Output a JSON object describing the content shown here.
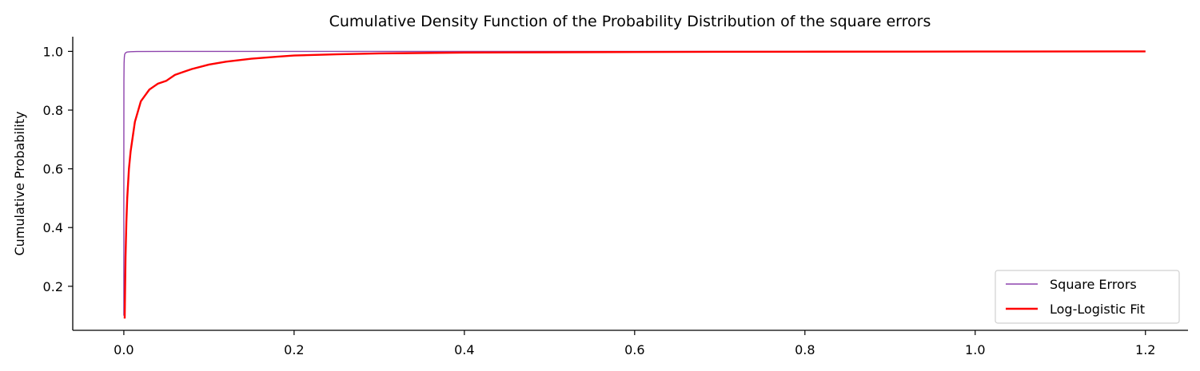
{
  "chart_data": {
    "type": "line",
    "title": "Cumulative Density Function of the Probability Distribution of the square errors",
    "xlabel": "",
    "ylabel": "Cumulative Probability",
    "xlim": [
      -0.06,
      1.25
    ],
    "ylim": [
      0.05,
      1.05
    ],
    "x_ticks": [
      0.0,
      0.2,
      0.4,
      0.6,
      0.8,
      1.0,
      1.2
    ],
    "x_tick_labels": [
      "0.0",
      "0.2",
      "0.4",
      "0.6",
      "0.8",
      "1.0",
      "1.2"
    ],
    "y_ticks": [
      0.2,
      0.4,
      0.6,
      0.8,
      1.0
    ],
    "y_tick_labels": [
      "0.2",
      "0.4",
      "0.6",
      "0.8",
      "1.0"
    ],
    "grid": false,
    "legend_position": "lower-right",
    "series": [
      {
        "name": "Square Errors",
        "color": "#8e44ad",
        "x": [
          0.0,
          0.0,
          0.0001,
          0.0003,
          0.0006,
          0.001,
          0.002,
          0.004,
          0.008,
          0.015,
          0.05,
          0.2,
          0.5,
          1.0,
          1.2
        ],
        "y": [
          0.1,
          0.6,
          0.9,
          0.96,
          0.98,
          0.99,
          0.995,
          0.998,
          0.999,
          0.9995,
          1.0,
          1.0,
          1.0,
          1.0,
          1.0
        ]
      },
      {
        "name": "Log-Logistic Fit",
        "color": "#ff0000",
        "x": [
          0.001,
          0.002,
          0.003,
          0.004,
          0.006,
          0.008,
          0.01,
          0.013,
          0.016,
          0.02,
          0.025,
          0.03,
          0.035,
          0.04,
          0.05,
          0.06,
          0.07,
          0.08,
          0.1,
          0.12,
          0.15,
          0.18,
          0.2,
          0.25,
          0.3,
          0.4,
          0.5,
          0.6,
          0.8,
          1.0,
          1.2
        ],
        "y": [
          0.09,
          0.3,
          0.42,
          0.5,
          0.6,
          0.66,
          0.7,
          0.76,
          0.79,
          0.83,
          0.85,
          0.87,
          0.88,
          0.89,
          0.9,
          0.92,
          0.93,
          0.94,
          0.955,
          0.965,
          0.975,
          0.982,
          0.986,
          0.99,
          0.993,
          0.996,
          0.997,
          0.998,
          0.999,
          0.9995,
          1.0
        ]
      }
    ]
  }
}
